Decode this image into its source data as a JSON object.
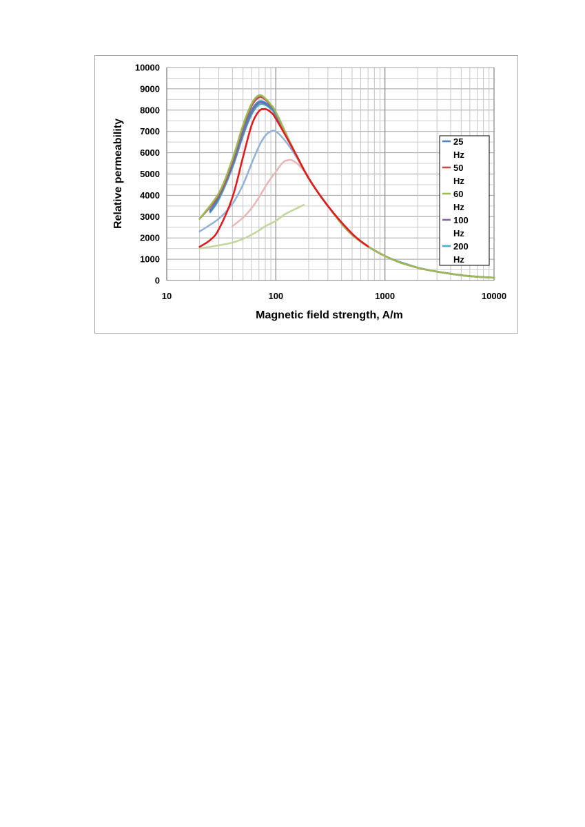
{
  "chart_data": {
    "type": "line",
    "title": "",
    "xlabel": "Magnetic field strength, A/m",
    "ylabel": "Relative permeability",
    "xscale": "log",
    "xlim": [
      10,
      10000
    ],
    "ylim": [
      0,
      10000
    ],
    "x_ticks": [
      "10",
      "100",
      "1000",
      "10000"
    ],
    "y_ticks": [
      "0",
      "1000",
      "2000",
      "3000",
      "4000",
      "5000",
      "6000",
      "7000",
      "8000",
      "9000",
      "10000"
    ],
    "grid": true,
    "legend_position": "right",
    "legend": [
      "25 Hz",
      "50 Hz",
      "60 Hz",
      "100 Hz",
      "200 Hz"
    ],
    "series": [
      {
        "name": "25 Hz",
        "color": "#4f81bd",
        "points": [
          [
            25,
            3250
          ],
          [
            30,
            3900
          ],
          [
            40,
            5500
          ],
          [
            50,
            7000
          ],
          [
            60,
            8000
          ],
          [
            70,
            8400
          ],
          [
            80,
            8350
          ],
          [
            90,
            8100
          ],
          [
            100,
            7800
          ],
          [
            150,
            6000
          ],
          [
            200,
            4800
          ],
          [
            300,
            3500
          ],
          [
            500,
            2150
          ],
          [
            1000,
            1150
          ],
          [
            2000,
            600
          ],
          [
            5000,
            250
          ],
          [
            10000,
            130
          ]
        ]
      },
      {
        "name": "50 Hz",
        "color": "#c0504d",
        "points": [
          [
            20,
            2900
          ],
          [
            30,
            4000
          ],
          [
            40,
            5600
          ],
          [
            50,
            7200
          ],
          [
            60,
            8200
          ],
          [
            70,
            8600
          ],
          [
            80,
            8500
          ],
          [
            90,
            8200
          ],
          [
            100,
            7900
          ],
          [
            150,
            6000
          ],
          [
            200,
            4800
          ],
          [
            300,
            3500
          ],
          [
            500,
            2150
          ],
          [
            1000,
            1150
          ],
          [
            2000,
            600
          ],
          [
            5000,
            250
          ],
          [
            10000,
            130
          ]
        ]
      },
      {
        "name": "60 Hz",
        "color": "#9bbb59",
        "points": [
          [
            20,
            2900
          ],
          [
            30,
            4100
          ],
          [
            40,
            5700
          ],
          [
            50,
            7300
          ],
          [
            60,
            8300
          ],
          [
            70,
            8700
          ],
          [
            80,
            8550
          ],
          [
            90,
            8250
          ],
          [
            100,
            7900
          ],
          [
            150,
            6000
          ],
          [
            200,
            4800
          ],
          [
            300,
            3500
          ],
          [
            500,
            2150
          ],
          [
            1000,
            1150
          ],
          [
            2000,
            600
          ],
          [
            5000,
            250
          ],
          [
            10000,
            130
          ]
        ]
      },
      {
        "name": "100 Hz",
        "color": "#8064a2",
        "points": [
          [
            25,
            3300
          ],
          [
            30,
            3900
          ],
          [
            40,
            5400
          ],
          [
            50,
            6900
          ],
          [
            60,
            7900
          ],
          [
            70,
            8350
          ],
          [
            80,
            8300
          ],
          [
            90,
            8100
          ],
          [
            100,
            7800
          ],
          [
            150,
            6000
          ],
          [
            200,
            4800
          ],
          [
            300,
            3500
          ],
          [
            500,
            2150
          ],
          [
            1000,
            1150
          ],
          [
            2000,
            600
          ],
          [
            5000,
            250
          ],
          [
            10000,
            130
          ]
        ]
      },
      {
        "name": "200 Hz",
        "color": "#4bacc6",
        "points": [
          [
            25,
            3200
          ],
          [
            30,
            3800
          ],
          [
            40,
            5300
          ],
          [
            50,
            6800
          ],
          [
            60,
            7800
          ],
          [
            70,
            8250
          ],
          [
            80,
            8250
          ],
          [
            90,
            8050
          ],
          [
            100,
            7750
          ],
          [
            150,
            6000
          ],
          [
            200,
            4800
          ],
          [
            300,
            3500
          ],
          [
            500,
            2150
          ],
          [
            1000,
            1150
          ],
          [
            2000,
            600
          ]
        ]
      },
      {
        "color": "#e31a1c",
        "points": [
          [
            20,
            1580
          ],
          [
            25,
            1900
          ],
          [
            30,
            2400
          ],
          [
            40,
            3900
          ],
          [
            50,
            5800
          ],
          [
            60,
            7300
          ],
          [
            70,
            7950
          ],
          [
            80,
            8050
          ],
          [
            90,
            7900
          ],
          [
            100,
            7600
          ],
          [
            150,
            6000
          ],
          [
            200,
            4800
          ],
          [
            300,
            3500
          ],
          [
            500,
            2200
          ],
          [
            700,
            1600
          ]
        ]
      },
      {
        "color": "#95b3d7",
        "points": [
          [
            20,
            2300
          ],
          [
            30,
            2900
          ],
          [
            40,
            3600
          ],
          [
            50,
            4500
          ],
          [
            60,
            5500
          ],
          [
            70,
            6300
          ],
          [
            80,
            6800
          ],
          [
            90,
            7000
          ],
          [
            100,
            7000
          ],
          [
            120,
            6600
          ],
          [
            150,
            5900
          ],
          [
            200,
            4800
          ]
        ]
      },
      {
        "color": "#e6b9b8",
        "points": [
          [
            40,
            2550
          ],
          [
            50,
            2950
          ],
          [
            60,
            3400
          ],
          [
            70,
            3900
          ],
          [
            80,
            4400
          ],
          [
            90,
            4800
          ],
          [
            100,
            5100
          ],
          [
            110,
            5400
          ],
          [
            120,
            5600
          ],
          [
            130,
            5650
          ],
          [
            140,
            5650
          ],
          [
            160,
            5450
          ],
          [
            200,
            4900
          ]
        ]
      },
      {
        "color": "#c3d69b",
        "points": [
          [
            20,
            1500
          ],
          [
            30,
            1650
          ],
          [
            40,
            1780
          ],
          [
            50,
            1950
          ],
          [
            60,
            2150
          ],
          [
            70,
            2350
          ],
          [
            80,
            2550
          ],
          [
            100,
            2800
          ],
          [
            120,
            3100
          ],
          [
            150,
            3350
          ],
          [
            180,
            3550
          ]
        ]
      }
    ]
  }
}
